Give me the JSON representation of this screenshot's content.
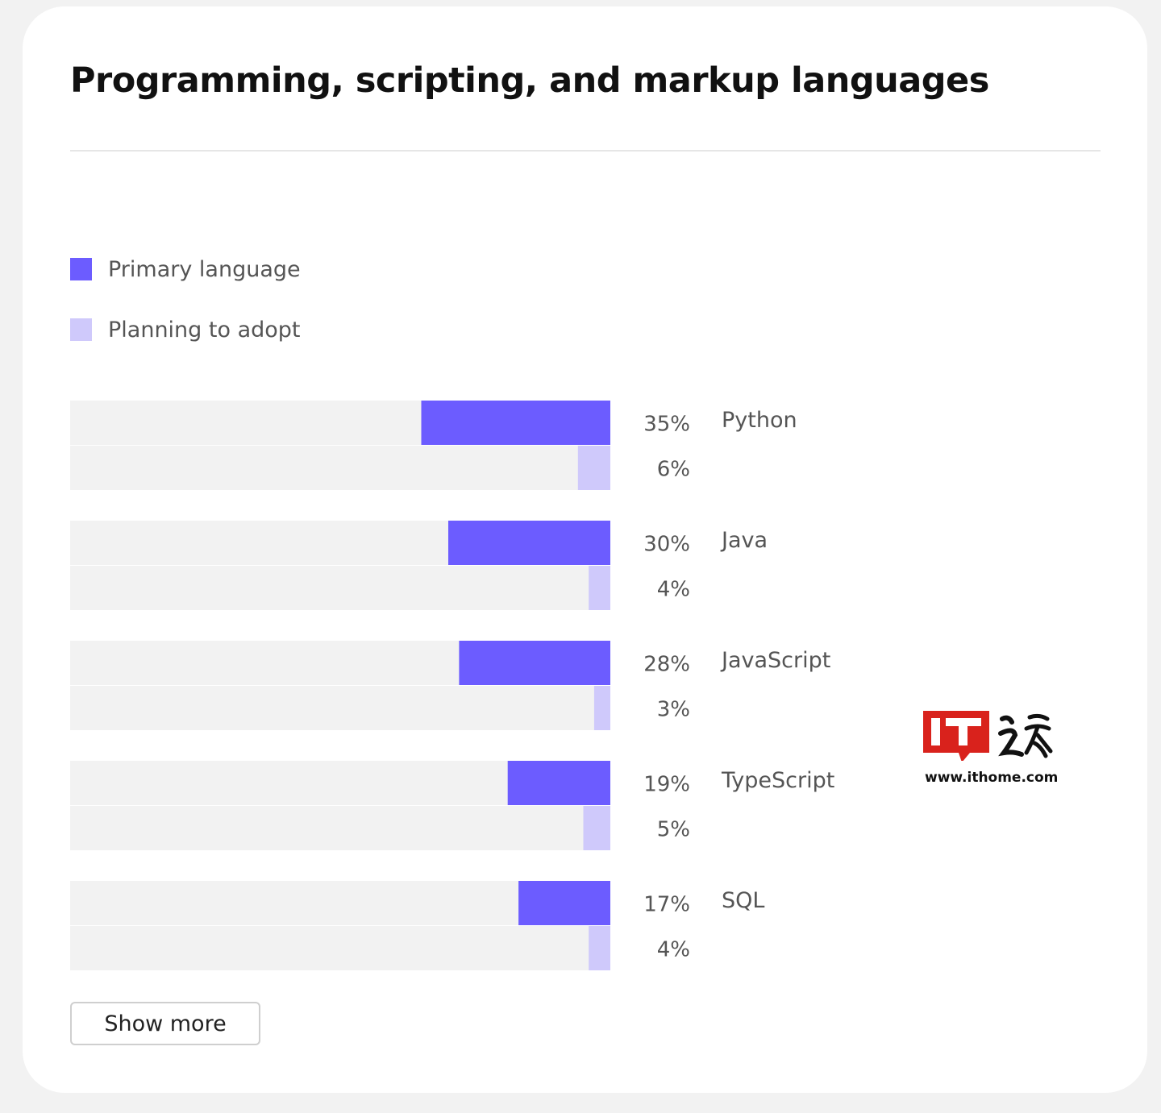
{
  "title": "Programming, scripting, and markup languages",
  "legend": [
    {
      "label": "Primary language",
      "color": "#6c5cff"
    },
    {
      "label": "Planning to adopt",
      "color": "#cfc9fb"
    }
  ],
  "track_color": "#f2f2f2",
  "show_more_label": "Show more",
  "watermark": {
    "url": "www.ithome.com",
    "logo_text": "IT之家",
    "logo_color": "#d9221c"
  },
  "chart_data": {
    "type": "bar",
    "orientation": "horizontal",
    "direction": "right-aligned",
    "categories": [
      "Python",
      "Java",
      "JavaScript",
      "TypeScript",
      "SQL"
    ],
    "series": [
      {
        "name": "Primary language",
        "values": [
          35,
          30,
          28,
          19,
          17
        ],
        "labels": [
          "35%",
          "30%",
          "28%",
          "19%",
          "17%"
        ]
      },
      {
        "name": "Planning to adopt",
        "values": [
          6,
          4,
          3,
          5,
          4
        ],
        "labels": [
          "6%",
          "4%",
          "3%",
          "5%",
          "4%"
        ]
      }
    ],
    "xlim": [
      0,
      100
    ],
    "title": "Programming, scripting, and markup languages",
    "xlabel": "",
    "ylabel": "",
    "grid": false,
    "legend_position": "top-left"
  }
}
